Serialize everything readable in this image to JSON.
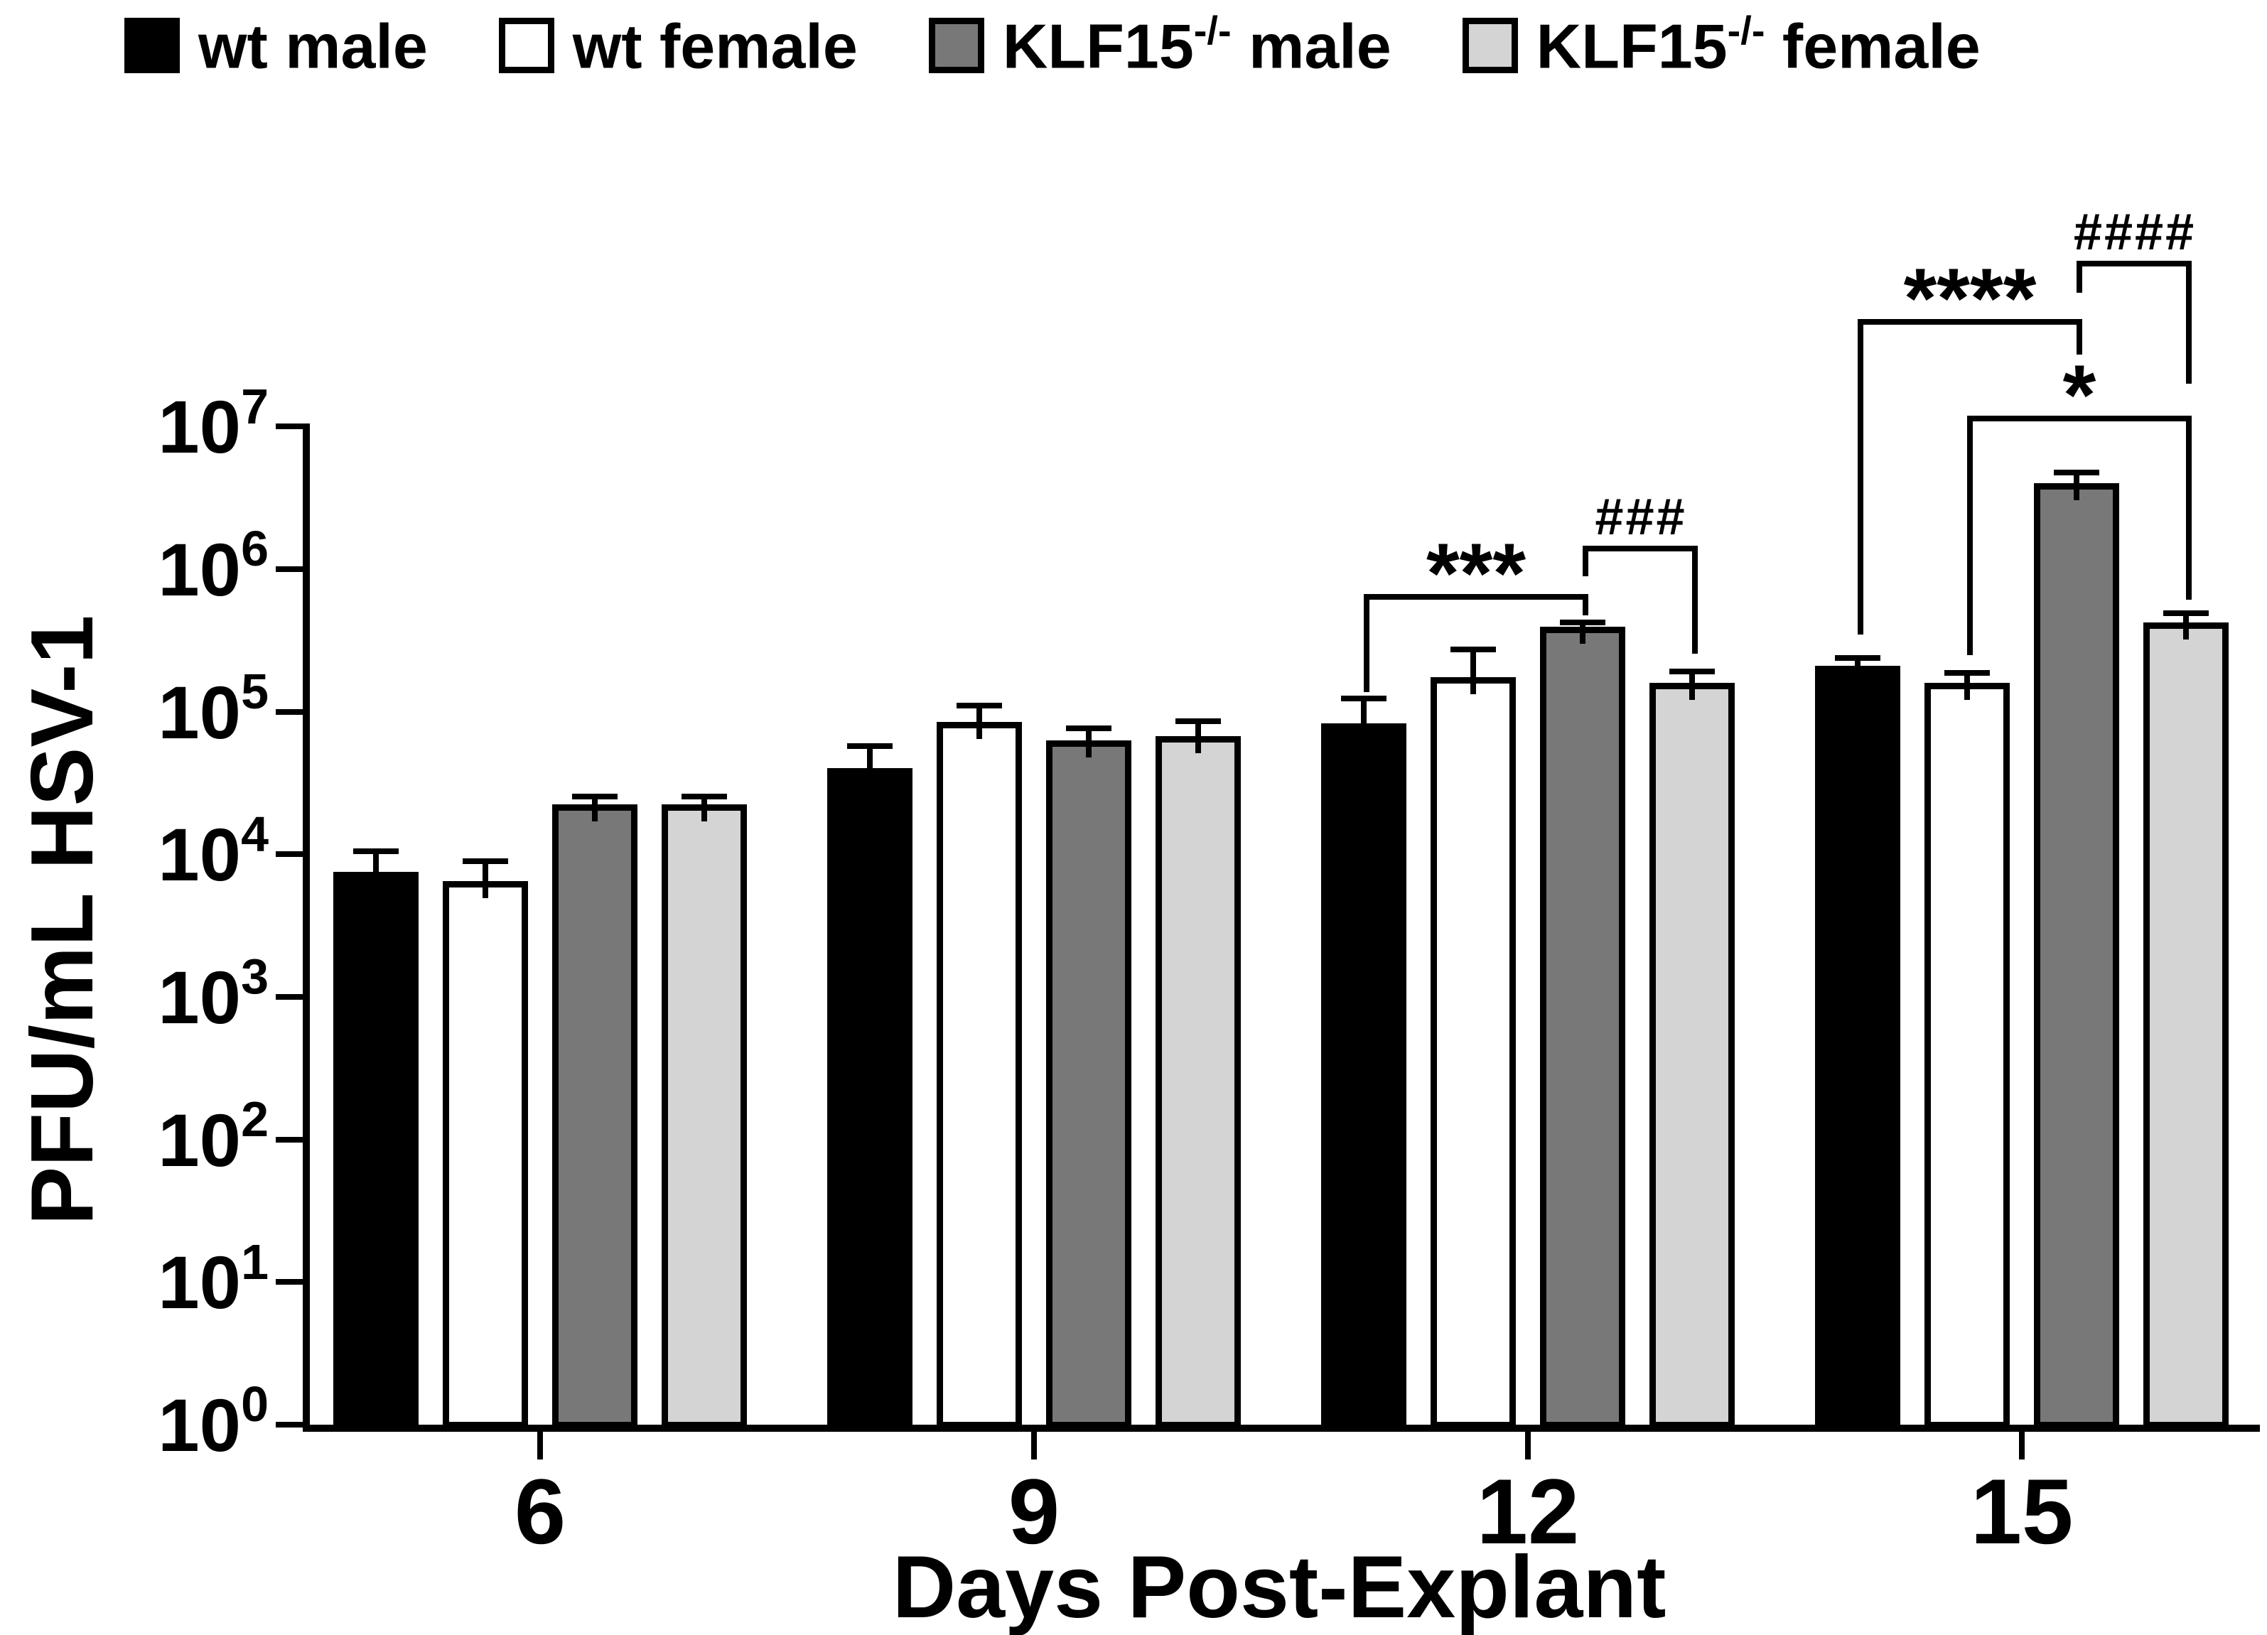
{
  "figure": {
    "legend": {
      "items": [
        {
          "base": "wt male",
          "sup": "",
          "suffix": "",
          "color": "#000000"
        },
        {
          "base": "wt female",
          "sup": "",
          "suffix": "",
          "color": "#ffffff"
        },
        {
          "base": "KLF15",
          "sup": "-/-",
          "suffix": " male",
          "color": "#787878"
        },
        {
          "base": "KLF15",
          "sup": "-/-",
          "suffix": " female",
          "color": "#d4d4d4"
        }
      ]
    }
  },
  "chart_data": {
    "type": "bar",
    "title": "",
    "xlabel": "Days Post-Explant",
    "ylabel": "PFU/mL HSV-1",
    "y_scale": "log10",
    "y_tick_mantissa": "10",
    "y_tick_exponents": [
      7,
      6,
      5,
      4,
      3,
      2,
      1,
      0
    ],
    "ylim": [
      1,
      10000000
    ],
    "grid": false,
    "legend_position": "top",
    "error_bars": "upper only",
    "categories": [
      "6",
      "9",
      "12",
      "15"
    ],
    "series": [
      {
        "name": "wt male",
        "color": "#000000",
        "values": [
          7500,
          40000,
          83000,
          210000
        ],
        "err_hi": [
          11000,
          60000,
          130000,
          250000
        ]
      },
      {
        "name": "wt female",
        "color": "#ffffff",
        "values": [
          6500,
          85000,
          175000,
          160000
        ],
        "err_hi": [
          9400,
          115000,
          285000,
          195000
        ]
      },
      {
        "name": "KLF15-/- male",
        "color": "#787878",
        "values": [
          22500,
          62500,
          395000,
          4000000
        ],
        "err_hi": [
          26500,
          80000,
          440000,
          5000000
        ]
      },
      {
        "name": "KLF15-/- female",
        "color": "#d4d4d4",
        "values": [
          22500,
          67500,
          160000,
          420000
        ],
        "err_hi": [
          26500,
          90000,
          200000,
          510000
        ]
      }
    ],
    "significance": [
      {
        "label": "***",
        "style": "asterisk",
        "group": 2,
        "from_series": 0,
        "to_series": 2,
        "y": 836,
        "drop_from": 138,
        "drop_to": 30
      },
      {
        "label": "###",
        "style": "hash",
        "group": 2,
        "from_series": 2,
        "to_series": 3,
        "y": 768,
        "drop_from": 43,
        "drop_to": 152
      },
      {
        "label": "****",
        "style": "asterisk",
        "group": 3,
        "from_series": 0,
        "to_series": 2,
        "y": 449,
        "drop_from": 444,
        "drop_to": 50
      },
      {
        "label": "####",
        "style": "hash",
        "group": 3,
        "from_series": 2,
        "to_series": 3,
        "y": 367,
        "drop_from": 45,
        "drop_to": 173
      },
      {
        "label": "*",
        "style": "asterisk",
        "group": 3,
        "from_series": 1,
        "to_series": 3,
        "y": 585,
        "drop_from": 337,
        "drop_to": 259
      }
    ]
  }
}
